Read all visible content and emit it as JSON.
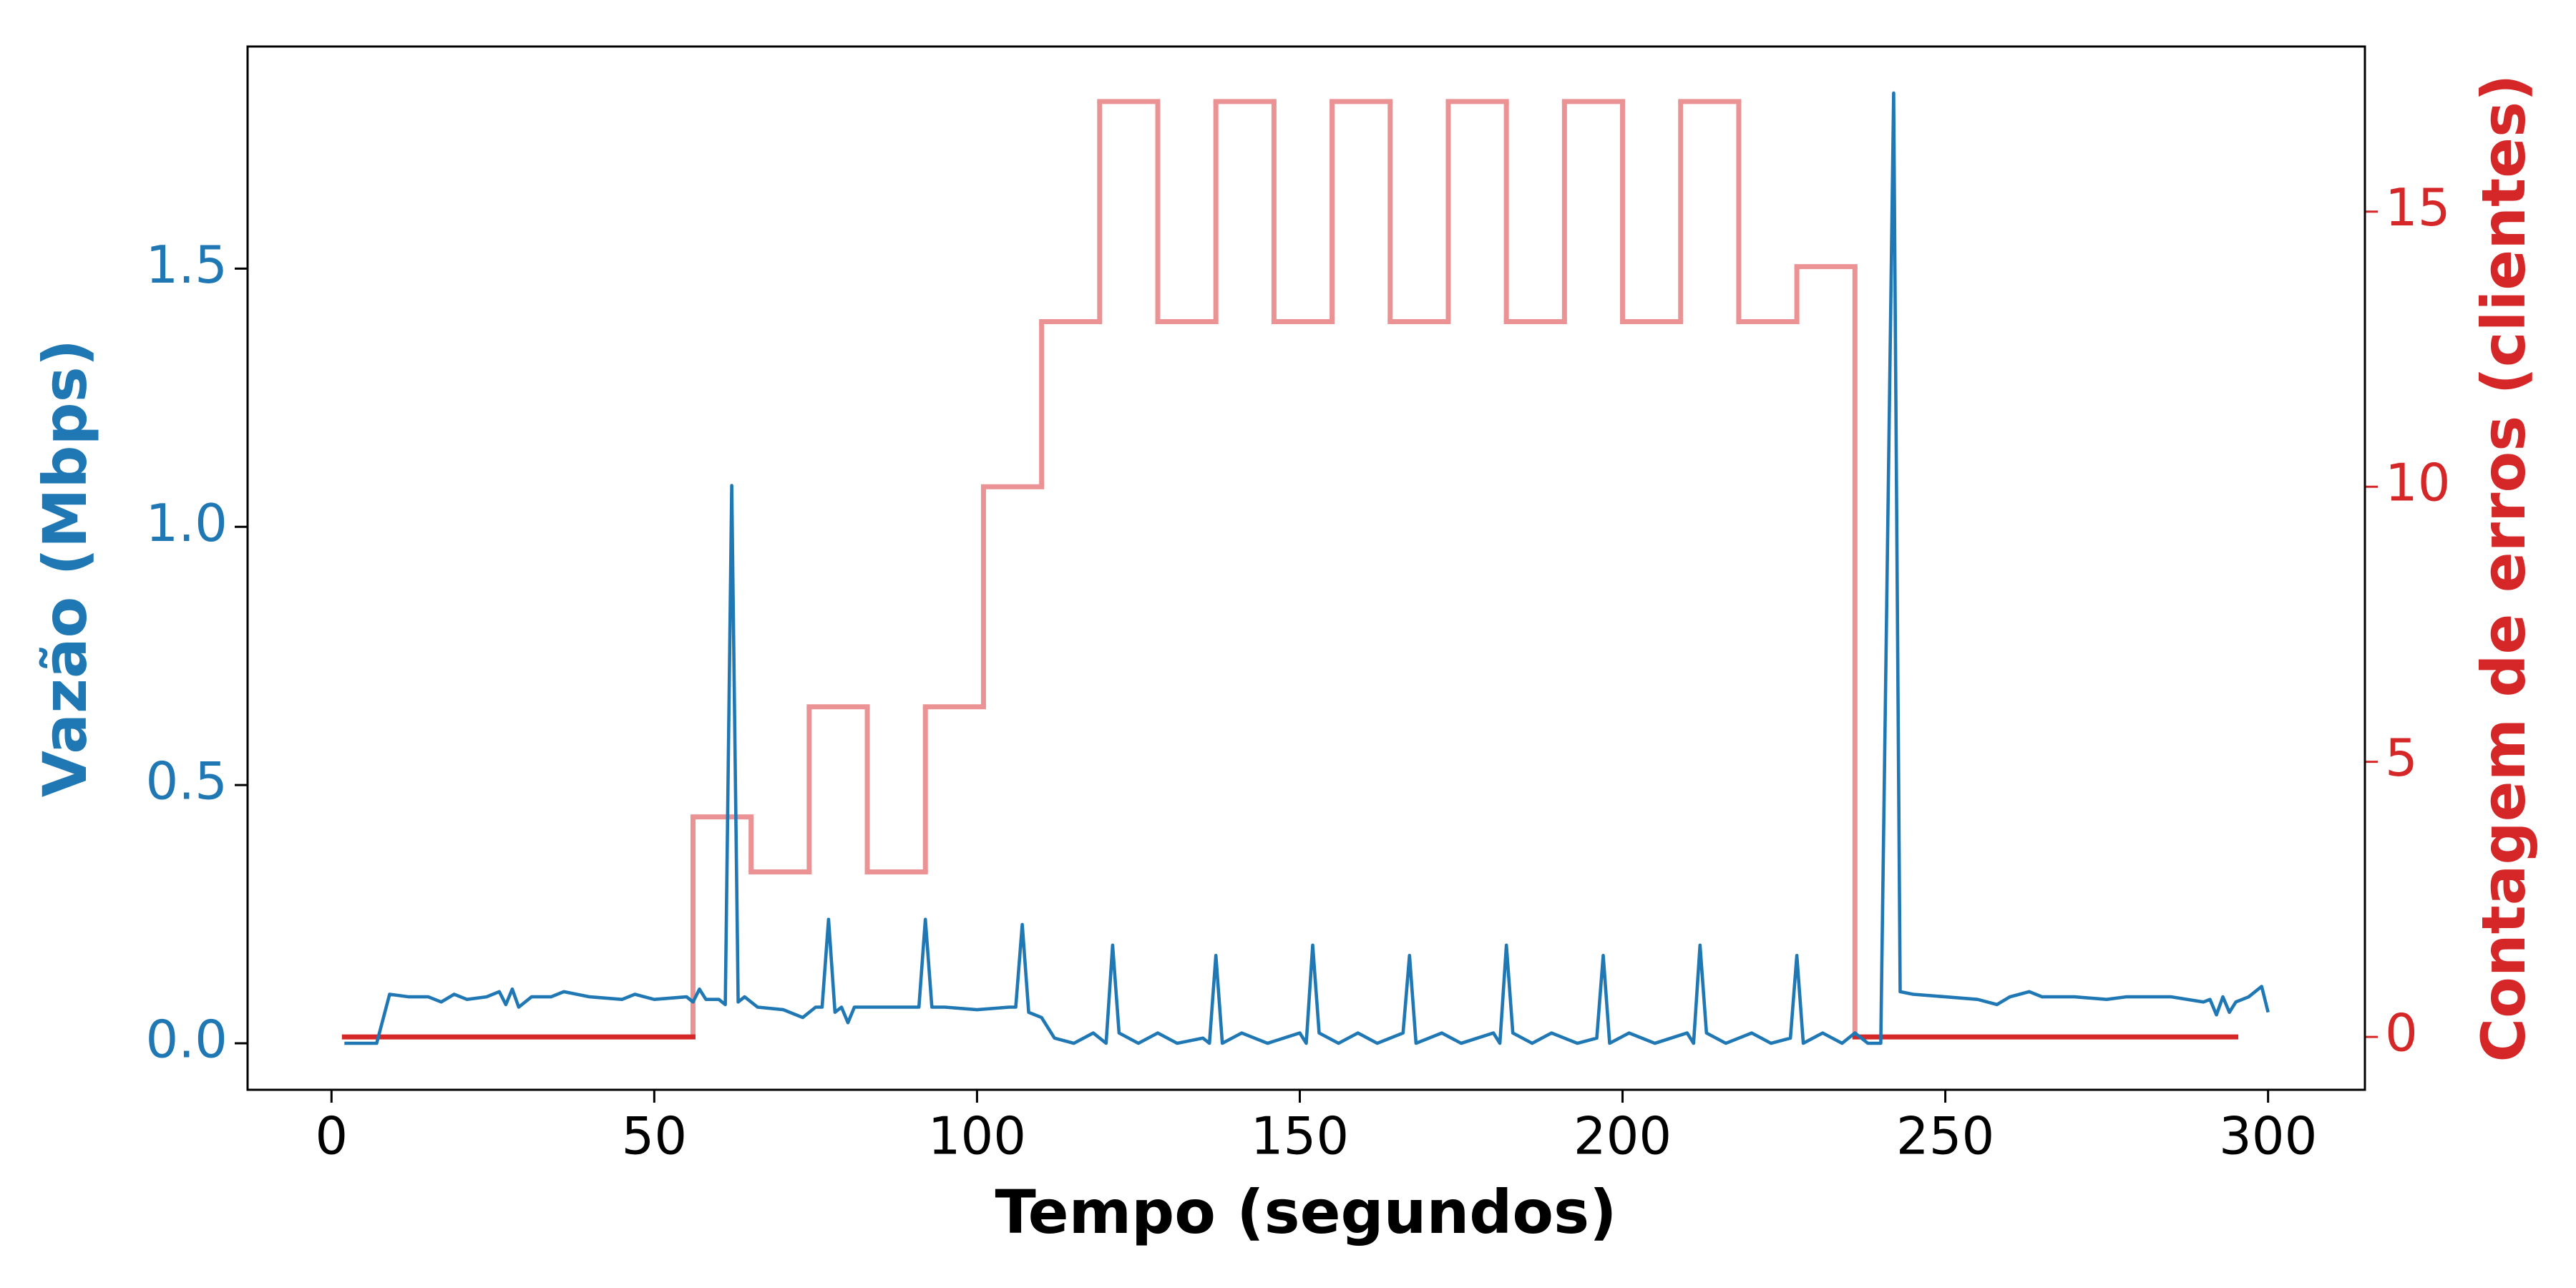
{
  "chart_data": {
    "type": "line",
    "xlabel": "Tempo (segundos)",
    "ylabel": "Vazão (Mbps)",
    "y2label": "Contagem de erros (clientes)",
    "xlim": [
      -13,
      315
    ],
    "ylim": [
      -0.09,
      1.93
    ],
    "y2lim": [
      -0.96,
      18.0
    ],
    "xticks": [
      0,
      50,
      100,
      150,
      200,
      250,
      300
    ],
    "yticks": [
      {
        "value": 0,
        "label": "0.0"
      },
      {
        "value": 0.5,
        "label": "0.5"
      },
      {
        "value": 1,
        "label": "1.0"
      },
      {
        "value": 1.5,
        "label": "1.5"
      }
    ],
    "y2ticks": [
      0,
      5,
      10,
      15
    ],
    "ylabel_color": "#1f77b4",
    "y2label_color": "#d62728",
    "series": [
      {
        "color": "#1f77b4",
        "axis": "y",
        "drawstyle": "default",
        "x": [
          2,
          7,
          9,
          12,
          15,
          17,
          19,
          21,
          24,
          26,
          27,
          28,
          29,
          31,
          34,
          36,
          40,
          45,
          47,
          50,
          55,
          56,
          57,
          58,
          60,
          61,
          62,
          63,
          64,
          66,
          70,
          73,
          75,
          76,
          77,
          78,
          79,
          80,
          81,
          85,
          90,
          91,
          92,
          93,
          95,
          100,
          105,
          106,
          107,
          108,
          110,
          112,
          115,
          118,
          120,
          121,
          122,
          125,
          128,
          131,
          135,
          136,
          137,
          138,
          141,
          145,
          150,
          151,
          152,
          153,
          156,
          159,
          162,
          166,
          167,
          168,
          172,
          175,
          180,
          181,
          182,
          183,
          186,
          189,
          193,
          196,
          197,
          198,
          201,
          205,
          210,
          211,
          212,
          213,
          216,
          220,
          223,
          226,
          227,
          228,
          231,
          234,
          236,
          238,
          240,
          242,
          243,
          245,
          250,
          255,
          258,
          260,
          263,
          265,
          270,
          275,
          278,
          285,
          290,
          291,
          292,
          293,
          294,
          295,
          297,
          299,
          300
        ],
        "values": [
          0.0,
          0.0,
          0.095,
          0.09,
          0.09,
          0.08,
          0.095,
          0.085,
          0.09,
          0.1,
          0.075,
          0.105,
          0.07,
          0.09,
          0.09,
          0.1,
          0.09,
          0.085,
          0.095,
          0.085,
          0.09,
          0.08,
          0.105,
          0.085,
          0.085,
          0.075,
          1.08,
          0.08,
          0.09,
          0.07,
          0.065,
          0.05,
          0.07,
          0.07,
          0.24,
          0.06,
          0.07,
          0.04,
          0.07,
          0.07,
          0.07,
          0.07,
          0.24,
          0.07,
          0.07,
          0.065,
          0.07,
          0.07,
          0.23,
          0.06,
          0.05,
          0.01,
          0.0,
          0.02,
          0.0,
          0.19,
          0.02,
          0.0,
          0.02,
          0.0,
          0.01,
          0.0,
          0.17,
          0.0,
          0.02,
          0.0,
          0.02,
          0.0,
          0.19,
          0.02,
          0.0,
          0.02,
          0.0,
          0.02,
          0.17,
          0.0,
          0.02,
          0.0,
          0.02,
          0.0,
          0.19,
          0.02,
          0.0,
          0.02,
          0.0,
          0.01,
          0.17,
          0.0,
          0.02,
          0.0,
          0.02,
          0.0,
          0.19,
          0.02,
          0.0,
          0.02,
          0.0,
          0.01,
          0.17,
          0.0,
          0.02,
          0.0,
          0.02,
          0.0,
          0.0,
          1.84,
          0.1,
          0.095,
          0.09,
          0.085,
          0.075,
          0.09,
          0.1,
          0.09,
          0.09,
          0.085,
          0.09,
          0.09,
          0.08,
          0.085,
          0.055,
          0.09,
          0.06,
          0.08,
          0.09,
          0.11,
          0.06
        ]
      },
      {
        "color": "#eb9394",
        "zero_color": "#d62728",
        "axis": "y2",
        "drawstyle": "steps-post",
        "x": [
          2,
          56,
          65,
          74,
          83,
          92,
          101,
          110,
          119,
          128,
          137,
          146,
          155,
          164,
          173,
          182,
          191,
          200,
          209,
          218,
          227,
          236,
          295
        ],
        "values": [
          0,
          4,
          3,
          6,
          3,
          6,
          10,
          13,
          17,
          13,
          17,
          13,
          17,
          13,
          17,
          13,
          17,
          13,
          17,
          13,
          14,
          0,
          0
        ]
      }
    ]
  }
}
